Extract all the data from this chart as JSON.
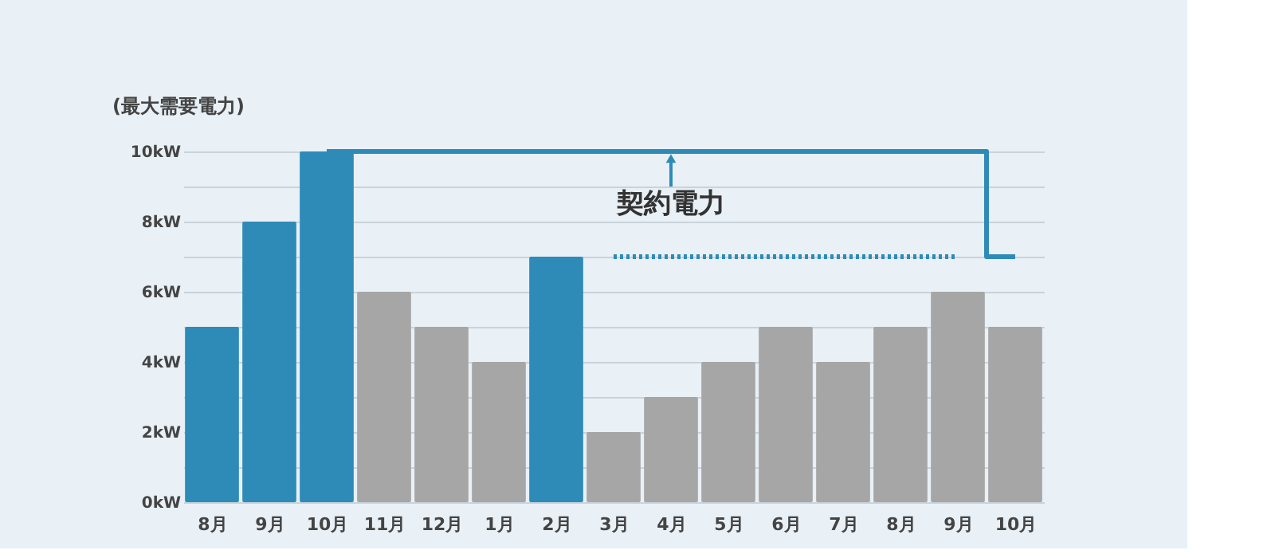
{
  "chart_data": {
    "type": "bar",
    "ylabel": "(最大需要電力)",
    "categories": [
      "8月",
      "9月",
      "10月",
      "11月",
      "12月",
      "1月",
      "2月",
      "3月",
      "4月",
      "5月",
      "6月",
      "7月",
      "8月",
      "9月",
      "10月"
    ],
    "series": [
      {
        "colors": [
          "#2e8bb8",
          "#2e8bb8",
          "#2e8bb8",
          "#a6a6a6",
          "#a6a6a6",
          "#a6a6a6",
          "#2e8bb8",
          "#a6a6a6",
          "#a6a6a6",
          "#a6a6a6",
          "#a6a6a6",
          "#a6a6a6",
          "#a6a6a6",
          "#a6a6a6",
          "#a6a6a6"
        ],
        "values": [
          5,
          8,
          10,
          6,
          5,
          4,
          7,
          2,
          3,
          4,
          5,
          4,
          5,
          6,
          5
        ]
      },
      {
        "type": "step",
        "name": "契約電力",
        "color": "#2e8bb8",
        "line_style": "solid",
        "values": [
          null,
          null,
          10,
          10,
          10,
          10,
          10,
          10,
          10,
          10,
          10,
          10,
          10,
          10,
          7
        ]
      },
      {
        "type": "line",
        "color": "#2e8bb8",
        "line_style": "dotted",
        "values": [
          null,
          null,
          null,
          null,
          null,
          null,
          null,
          7,
          7,
          7,
          7,
          7,
          7,
          7,
          null
        ]
      }
    ],
    "ylim": [
      0,
      10
    ],
    "yticks": [
      {
        "value": 0,
        "label": "0kW"
      },
      {
        "value": 1,
        "label": null
      },
      {
        "value": 2,
        "label": "2kW"
      },
      {
        "value": 3,
        "label": null
      },
      {
        "value": 4,
        "label": "4kW"
      },
      {
        "value": 5,
        "label": null
      },
      {
        "value": 6,
        "label": "6kW"
      },
      {
        "value": 7,
        "label": null
      },
      {
        "value": 8,
        "label": "8kW"
      },
      {
        "value": 9,
        "label": null
      },
      {
        "value": 10,
        "label": "10kW"
      }
    ],
    "grid": "y"
  }
}
